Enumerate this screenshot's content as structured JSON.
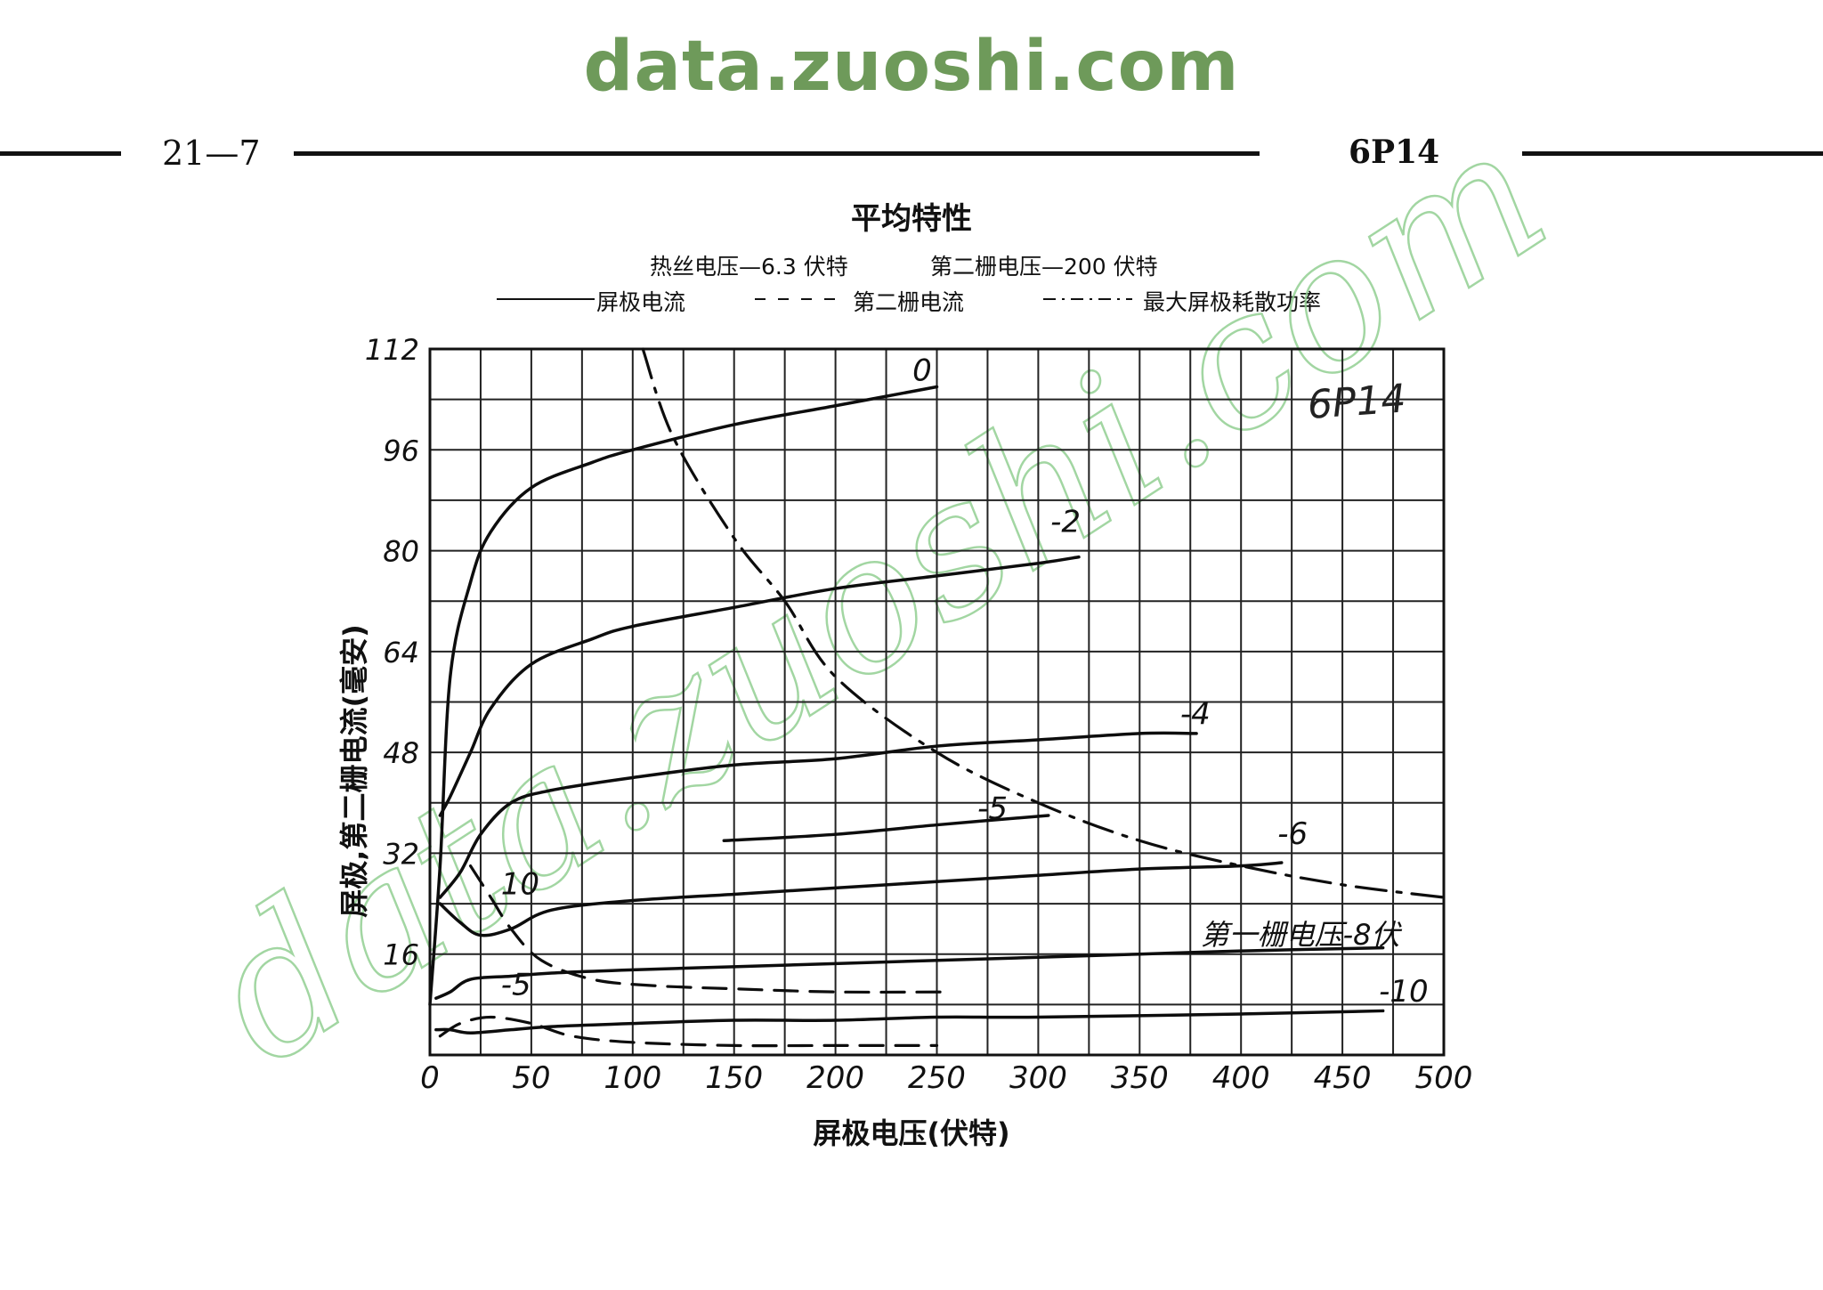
{
  "site": {
    "header": "data.zuoshi.com",
    "watermark": "data.zuoshi.com"
  },
  "page": {
    "number": "21—7",
    "tube": "6P14"
  },
  "chart_data": {
    "type": "line",
    "title": "平均特性",
    "conditions": [
      "热丝电压—6.3 伏特",
      "第二栅电压—200 伏特"
    ],
    "legend": [
      {
        "style": "solid",
        "label": "屏极电流"
      },
      {
        "style": "dashed",
        "label": "第二栅电流"
      },
      {
        "style": "dash-dot",
        "label": "最大屏极耗散功率"
      }
    ],
    "inset_label": "6P14",
    "xlabel": "屏极电压(伏特)",
    "ylabel": "屏极,第二栅电流(毫安)",
    "xlim": [
      0,
      500
    ],
    "ylim": [
      0,
      112
    ],
    "x_ticks": [
      "0",
      "50",
      "100",
      "150",
      "200",
      "250",
      "300",
      "350",
      "400",
      "450",
      "500"
    ],
    "y_ticks": [
      "112",
      "96",
      "80",
      "64",
      "48",
      "32",
      "16"
    ],
    "grid": true,
    "series": [
      {
        "name": "0",
        "kind": "plate",
        "style": "solid",
        "points": [
          [
            0,
            8
          ],
          [
            5,
            30
          ],
          [
            10,
            60
          ],
          [
            20,
            75
          ],
          [
            30,
            83
          ],
          [
            50,
            90
          ],
          [
            80,
            94
          ],
          [
            100,
            96
          ],
          [
            150,
            100
          ],
          [
            200,
            103
          ],
          [
            250,
            106
          ]
        ]
      },
      {
        "name": "-2",
        "kind": "plate",
        "style": "solid",
        "points": [
          [
            5,
            38
          ],
          [
            10,
            41
          ],
          [
            20,
            48
          ],
          [
            30,
            55
          ],
          [
            50,
            62
          ],
          [
            80,
            66
          ],
          [
            100,
            68
          ],
          [
            150,
            71
          ],
          [
            200,
            74
          ],
          [
            250,
            76
          ],
          [
            300,
            78
          ],
          [
            320,
            79
          ]
        ]
      },
      {
        "name": "-4",
        "kind": "plate",
        "style": "solid",
        "points": [
          [
            5,
            25
          ],
          [
            15,
            29
          ],
          [
            25,
            35
          ],
          [
            40,
            40
          ],
          [
            60,
            42
          ],
          [
            100,
            44
          ],
          [
            150,
            46
          ],
          [
            200,
            47
          ],
          [
            250,
            49
          ],
          [
            300,
            50
          ],
          [
            350,
            51
          ],
          [
            378,
            51
          ]
        ]
      },
      {
        "name": "-5",
        "kind": "plate",
        "style": "solid",
        "points": [
          [
            145,
            34
          ],
          [
            200,
            35
          ],
          [
            250,
            36.5
          ],
          [
            305,
            38
          ]
        ]
      },
      {
        "name": "-6",
        "kind": "plate",
        "style": "solid",
        "points": [
          [
            5,
            24
          ],
          [
            15,
            21
          ],
          [
            25,
            19
          ],
          [
            40,
            20
          ],
          [
            60,
            23
          ],
          [
            100,
            24.5
          ],
          [
            150,
            25.5
          ],
          [
            200,
            26.5
          ],
          [
            250,
            27.5
          ],
          [
            300,
            28.5
          ],
          [
            350,
            29.5
          ],
          [
            400,
            30
          ],
          [
            420,
            30.5
          ]
        ]
      },
      {
        "name": "第一栅电压-8伏",
        "kind": "plate",
        "style": "solid",
        "points": [
          [
            3,
            9
          ],
          [
            10,
            10
          ],
          [
            20,
            12
          ],
          [
            40,
            12.5
          ],
          [
            60,
            13
          ],
          [
            100,
            13.5
          ],
          [
            150,
            14
          ],
          [
            200,
            14.5
          ],
          [
            250,
            15
          ],
          [
            300,
            15.5
          ],
          [
            350,
            16
          ],
          [
            400,
            16.5
          ],
          [
            470,
            17
          ]
        ]
      },
      {
        "name": "-10",
        "kind": "plate",
        "style": "solid",
        "points": [
          [
            3,
            4
          ],
          [
            10,
            4
          ],
          [
            20,
            3.5
          ],
          [
            40,
            4
          ],
          [
            60,
            4.5
          ],
          [
            100,
            5
          ],
          [
            150,
            5.5
          ],
          [
            200,
            5.5
          ],
          [
            250,
            6
          ],
          [
            300,
            6
          ],
          [
            400,
            6.5
          ],
          [
            470,
            7
          ]
        ]
      },
      {
        "name": "10",
        "kind": "screen",
        "style": "dashed",
        "points": [
          [
            20,
            30
          ],
          [
            30,
            25
          ],
          [
            40,
            20
          ],
          [
            55,
            15
          ],
          [
            80,
            12
          ],
          [
            110,
            11
          ],
          [
            150,
            10.5
          ],
          [
            200,
            10
          ],
          [
            255,
            10
          ]
        ]
      },
      {
        "name": "-5",
        "kind": "screen",
        "style": "dashed",
        "points": [
          [
            5,
            3
          ],
          [
            15,
            5
          ],
          [
            30,
            6
          ],
          [
            50,
            5
          ],
          [
            70,
            3
          ],
          [
            100,
            2
          ],
          [
            150,
            1.5
          ],
          [
            200,
            1.5
          ],
          [
            250,
            1.5
          ]
        ]
      },
      {
        "name": "最大屏极耗散功率",
        "kind": "pmax",
        "style": "dash-dot",
        "points": [
          [
            105,
            112
          ],
          [
            120,
            98
          ],
          [
            150,
            82
          ],
          [
            175,
            72
          ],
          [
            200,
            60
          ],
          [
            250,
            48
          ],
          [
            300,
            40
          ],
          [
            350,
            34
          ],
          [
            400,
            30
          ],
          [
            450,
            27
          ],
          [
            500,
            25
          ]
        ]
      }
    ],
    "curve_labels": [
      {
        "text": "0",
        "x": 238,
        "y": 107
      },
      {
        "text": "-2",
        "x": 306,
        "y": 83
      },
      {
        "text": "-4",
        "x": 370,
        "y": 52.5
      },
      {
        "text": "-5",
        "x": 270,
        "y": 37.5
      },
      {
        "text": "-6",
        "x": 418,
        "y": 33.5
      },
      {
        "text": "第一栅电压-8伏",
        "x": 380,
        "y": 17.5
      },
      {
        "text": "-10",
        "x": 468,
        "y": 8.5
      },
      {
        "text": "10",
        "x": 35,
        "y": 25.5
      },
      {
        "text": "-5",
        "x": 35,
        "y": 9.5
      }
    ]
  }
}
